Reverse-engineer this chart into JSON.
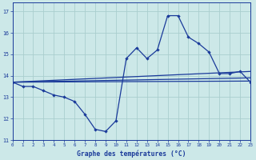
{
  "xlabel": "Graphe des températures (°C)",
  "bg_color": "#cce8e8",
  "grid_color": "#aacece",
  "line_color": "#1a3a9a",
  "xlim": [
    0,
    23
  ],
  "ylim": [
    11,
    17.4
  ],
  "yticks": [
    11,
    12,
    13,
    14,
    15,
    16,
    17
  ],
  "xticks": [
    0,
    1,
    2,
    3,
    4,
    5,
    6,
    7,
    8,
    9,
    10,
    11,
    12,
    13,
    14,
    15,
    16,
    17,
    18,
    19,
    20,
    21,
    22,
    23
  ],
  "series_main": [
    [
      0,
      13.7
    ],
    [
      1,
      13.5
    ],
    [
      2,
      13.5
    ],
    [
      3,
      13.3
    ],
    [
      4,
      13.1
    ],
    [
      5,
      13.0
    ],
    [
      6,
      12.8
    ],
    [
      7,
      12.2
    ],
    [
      8,
      11.5
    ],
    [
      9,
      11.4
    ],
    [
      10,
      11.9
    ],
    [
      11,
      14.8
    ],
    [
      12,
      15.3
    ],
    [
      13,
      14.8
    ],
    [
      14,
      15.2
    ],
    [
      15,
      16.8
    ],
    [
      16,
      16.8
    ],
    [
      17,
      15.8
    ],
    [
      18,
      15.5
    ],
    [
      19,
      15.1
    ],
    [
      20,
      14.1
    ],
    [
      21,
      14.1
    ],
    [
      22,
      14.2
    ],
    [
      23,
      13.7
    ]
  ],
  "line_max": [
    [
      0,
      13.7
    ],
    [
      23,
      14.2
    ]
  ],
  "line_avg1": [
    [
      0,
      13.7
    ],
    [
      23,
      13.8
    ]
  ],
  "line_avg2": [
    [
      0,
      13.7
    ],
    [
      23,
      13.75
    ]
  ]
}
